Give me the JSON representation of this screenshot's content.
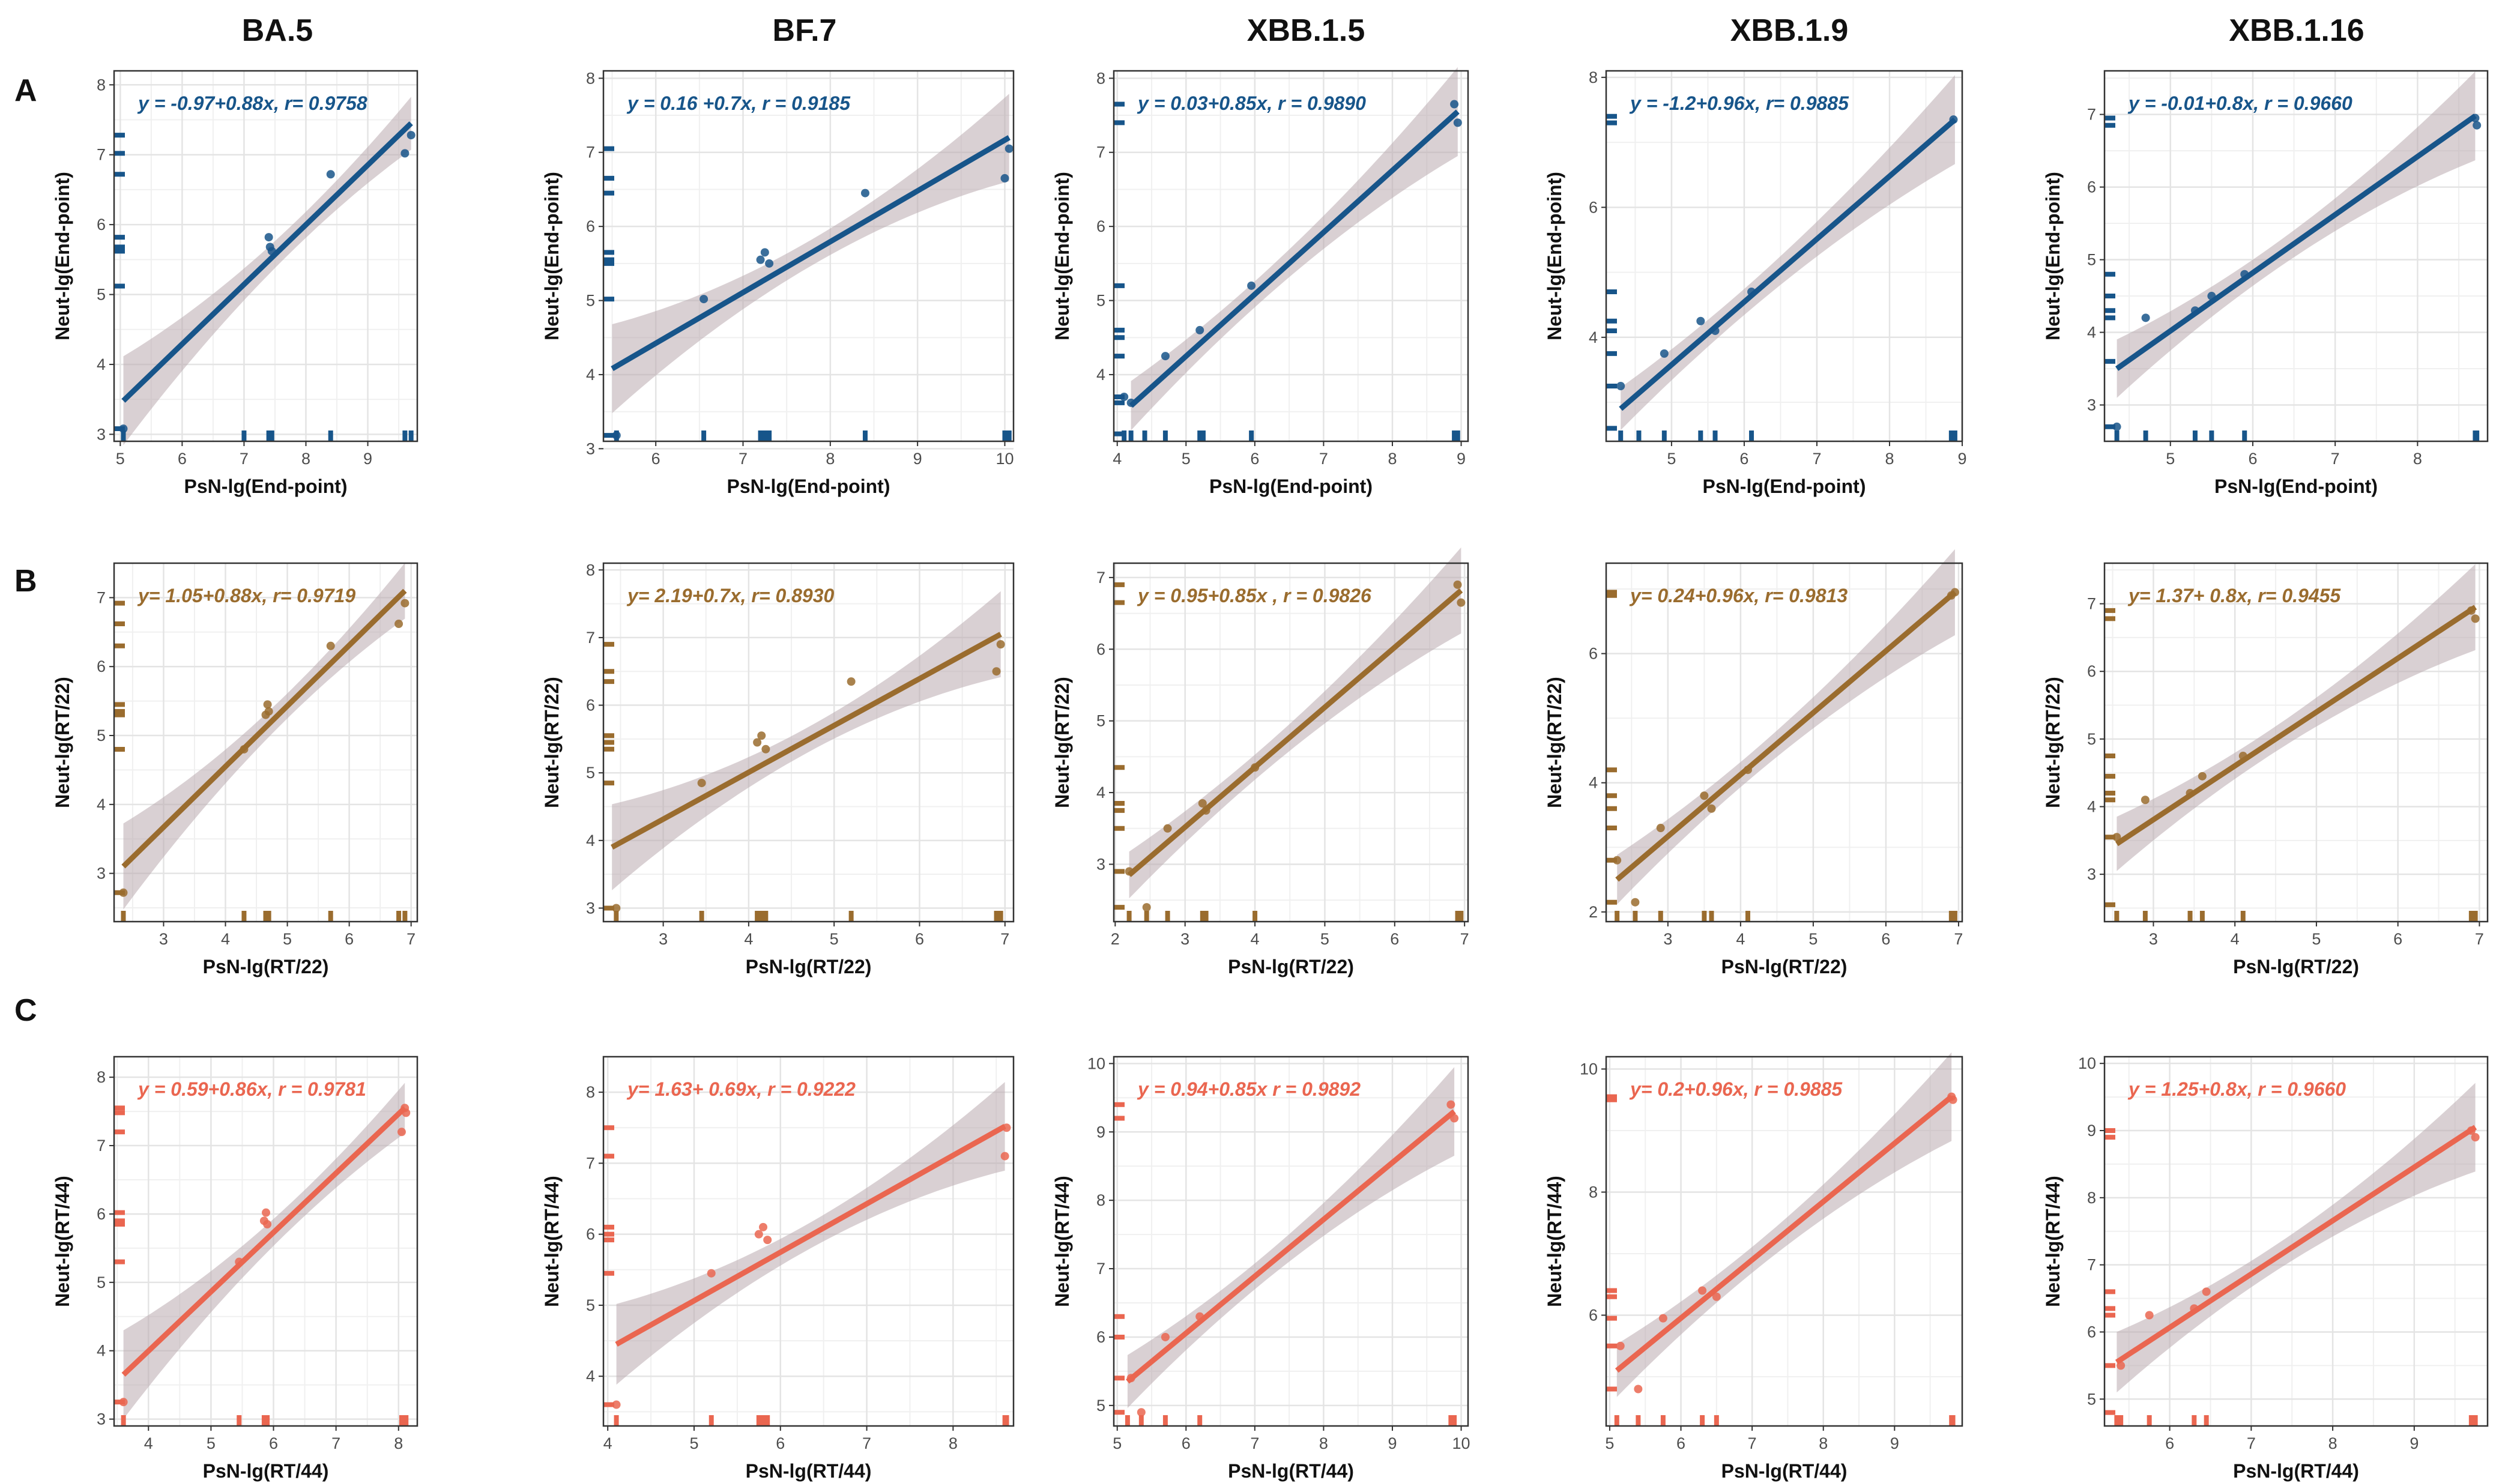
{
  "figure": {
    "col_titles": [
      "BA.5",
      "BF.7",
      "XBB.1.5",
      "XBB.1.9",
      "XBB.1.16"
    ],
    "row_labels": [
      "A",
      "B",
      "C"
    ],
    "row_colors": [
      "#17558a",
      "#9a6c2e",
      "#ea6650"
    ]
  },
  "chart_data": [
    {
      "type": "scatter",
      "row": 0,
      "col": 0,
      "variant": "BA.5",
      "title": "BA.5",
      "xlabel": "PsN-lg(End-point)",
      "ylabel": "Neut-lg(End-point)",
      "xlim": [
        4.9,
        9.8
      ],
      "ylim": [
        2.9,
        8.2
      ],
      "xticks": [
        5,
        6,
        7,
        8,
        9
      ],
      "yticks": [
        3,
        4,
        5,
        6,
        7,
        8
      ],
      "points": [
        [
          5.05,
          3.08
        ],
        [
          7.4,
          5.82
        ],
        [
          7.42,
          5.68
        ],
        [
          7.45,
          5.62
        ],
        [
          8.4,
          6.72
        ],
        [
          9.6,
          7.02
        ],
        [
          9.7,
          7.28
        ]
      ],
      "fit": [
        [
          5.05,
          3.48
        ],
        [
          9.7,
          7.45
        ]
      ],
      "equation": "y = -0.97+0.88x, r= 0.9758",
      "rug_x": [
        5.05,
        7.0,
        7.4,
        7.42,
        7.45,
        8.4,
        9.6,
        9.7
      ],
      "rug_y": [
        3.08,
        5.12,
        5.62,
        5.68,
        5.82,
        6.72,
        7.02,
        7.28
      ]
    },
    {
      "type": "scatter",
      "row": 0,
      "col": 1,
      "variant": "BF.7",
      "title": "BF.7",
      "xlabel": "PsN-lg(End-point)",
      "ylabel": "Neut-lg(End-point)",
      "xlim": [
        5.4,
        10.1
      ],
      "ylim": [
        3.1,
        8.1
      ],
      "xticks": [
        6,
        7,
        8,
        9,
        10
      ],
      "yticks": [
        3,
        4,
        5,
        6,
        7,
        8
      ],
      "points": [
        [
          5.55,
          3.18
        ],
        [
          6.55,
          5.02
        ],
        [
          7.2,
          5.55
        ],
        [
          7.25,
          5.65
        ],
        [
          7.3,
          5.5
        ],
        [
          8.4,
          6.45
        ],
        [
          10.0,
          6.65
        ],
        [
          10.05,
          7.05
        ]
      ],
      "fit": [
        [
          5.5,
          4.08
        ],
        [
          10.05,
          7.2
        ]
      ],
      "equation": "y = 0.16 +0.7x,  r = 0.9185",
      "rug_x": [
        5.55,
        6.55,
        7.2,
        7.25,
        7.3,
        8.4,
        10.0,
        10.05
      ],
      "rug_y": [
        3.18,
        5.02,
        5.5,
        5.55,
        5.65,
        6.45,
        6.65,
        7.05
      ]
    },
    {
      "type": "scatter",
      "row": 0,
      "col": 2,
      "variant": "XBB.1.5",
      "title": "XBB.1.5",
      "xlabel": "PsN-lg(End-point)",
      "ylabel": "Neut-lg(End-point)",
      "xlim": [
        3.95,
        9.1
      ],
      "ylim": [
        3.1,
        8.1
      ],
      "xticks": [
        4,
        5,
        6,
        7,
        8,
        9
      ],
      "yticks": [
        4,
        5,
        6,
        7,
        8
      ],
      "points": [
        [
          4.1,
          3.7
        ],
        [
          4.2,
          3.62
        ],
        [
          4.7,
          4.25
        ],
        [
          5.2,
          4.6
        ],
        [
          5.95,
          5.2
        ],
        [
          8.9,
          7.65
        ],
        [
          8.95,
          7.4
        ]
      ],
      "fit": [
        [
          4.2,
          3.58
        ],
        [
          8.95,
          7.55
        ]
      ],
      "equation": "y = 0.03+0.85x,  r = 0.9890",
      "rug_x": [
        4.1,
        4.2,
        4.4,
        4.7,
        5.2,
        5.25,
        5.95,
        8.9,
        8.95
      ],
      "rug_y": [
        3.2,
        3.62,
        3.7,
        4.25,
        4.5,
        4.6,
        5.2,
        7.4,
        7.65
      ]
    },
    {
      "type": "scatter",
      "row": 0,
      "col": 3,
      "variant": "XBB.1.9",
      "title": "XBB.1.9",
      "xlabel": "PsN-lg(End-point)",
      "ylabel": "Neut-lg(End-point)",
      "xlim": [
        4.1,
        9.0
      ],
      "ylim": [
        2.4,
        8.1
      ],
      "xticks": [
        5,
        6,
        7,
        8,
        9
      ],
      "yticks": [
        4,
        6,
        8
      ],
      "points": [
        [
          4.3,
          3.25
        ],
        [
          4.9,
          3.75
        ],
        [
          5.4,
          4.25
        ],
        [
          5.6,
          4.1
        ],
        [
          6.1,
          4.7
        ],
        [
          8.88,
          7.35
        ]
      ],
      "fit": [
        [
          4.3,
          2.9
        ],
        [
          8.9,
          7.35
        ]
      ],
      "equation": "y = -1.2+0.96x, r= 0.9885",
      "rug_x": [
        4.3,
        4.55,
        4.9,
        5.4,
        5.6,
        6.1,
        8.85,
        8.9
      ],
      "rug_y": [
        2.6,
        3.25,
        3.75,
        4.1,
        4.25,
        4.7,
        7.3,
        7.4
      ]
    },
    {
      "type": "scatter",
      "row": 0,
      "col": 4,
      "variant": "XBB.1.16",
      "title": "XBB.1.16",
      "xlabel": "PsN-lg(End-point)",
      "ylabel": "Neut-lg(End-point)",
      "xlim": [
        4.2,
        8.85
      ],
      "ylim": [
        2.5,
        7.6
      ],
      "xticks": [
        5,
        6,
        7,
        8
      ],
      "yticks": [
        3,
        4,
        5,
        6,
        7
      ],
      "points": [
        [
          4.35,
          2.7
        ],
        [
          4.7,
          4.2
        ],
        [
          5.3,
          4.3
        ],
        [
          5.5,
          4.5
        ],
        [
          5.9,
          4.8
        ],
        [
          8.7,
          6.95
        ],
        [
          8.72,
          6.85
        ]
      ],
      "fit": [
        [
          4.35,
          3.5
        ],
        [
          8.7,
          6.98
        ]
      ],
      "equation": "y = -0.01+0.8x,  r = 0.9660",
      "rug_x": [
        4.35,
        4.7,
        5.3,
        5.5,
        5.9,
        8.7,
        8.72
      ],
      "rug_y": [
        2.7,
        3.6,
        4.2,
        4.3,
        4.5,
        4.8,
        6.85,
        6.95
      ]
    },
    {
      "type": "scatter",
      "row": 1,
      "col": 0,
      "variant": "BA.5",
      "title": "BA.5",
      "xlabel": "PsN-lg(RT/22)",
      "ylabel": "Neut-lg(RT/22)",
      "xlim": [
        2.2,
        7.1
      ],
      "ylim": [
        2.3,
        7.5
      ],
      "xticks": [
        3,
        4,
        5,
        6,
        7
      ],
      "yticks": [
        3,
        4,
        5,
        6,
        7
      ],
      "points": [
        [
          2.35,
          2.72
        ],
        [
          4.3,
          4.8
        ],
        [
          4.65,
          5.3
        ],
        [
          4.68,
          5.45
        ],
        [
          4.7,
          5.35
        ],
        [
          5.7,
          6.3
        ],
        [
          6.8,
          6.62
        ],
        [
          6.9,
          6.92
        ]
      ],
      "fit": [
        [
          2.35,
          3.1
        ],
        [
          6.9,
          7.1
        ]
      ],
      "equation": "y= 1.05+0.88x, r= 0.9719",
      "rug_x": [
        2.35,
        4.3,
        4.65,
        4.68,
        4.7,
        5.7,
        6.8,
        6.9
      ],
      "rug_y": [
        2.72,
        4.8,
        5.3,
        5.35,
        5.45,
        6.3,
        6.62,
        6.92
      ]
    },
    {
      "type": "scatter",
      "row": 1,
      "col": 1,
      "variant": "BF.7",
      "title": "BF.7",
      "xlabel": "PsN-lg(RT/22)",
      "ylabel": "Neut-lg(RT/22)",
      "xlim": [
        2.3,
        7.1
      ],
      "ylim": [
        2.8,
        8.1
      ],
      "xticks": [
        3,
        4,
        5,
        6,
        7
      ],
      "yticks": [
        3,
        4,
        5,
        6,
        7,
        8
      ],
      "points": [
        [
          2.45,
          3.0
        ],
        [
          3.45,
          4.85
        ],
        [
          4.1,
          5.45
        ],
        [
          4.15,
          5.55
        ],
        [
          4.2,
          5.35
        ],
        [
          5.2,
          6.35
        ],
        [
          6.9,
          6.5
        ],
        [
          6.95,
          6.9
        ]
      ],
      "fit": [
        [
          2.4,
          3.9
        ],
        [
          6.95,
          7.05
        ]
      ],
      "equation": "y= 2.19+0.7x, r= 0.8930",
      "rug_x": [
        2.45,
        3.45,
        4.1,
        4.15,
        4.2,
        5.2,
        6.9,
        6.95
      ],
      "rug_y": [
        3.0,
        4.85,
        5.35,
        5.45,
        5.55,
        6.35,
        6.5,
        6.9
      ]
    },
    {
      "type": "scatter",
      "row": 1,
      "col": 2,
      "variant": "XBB.1.5",
      "title": "XBB.1.5",
      "xlabel": "PsN-lg(RT/22)",
      "ylabel": "Neut-lg(RT/22)",
      "xlim": [
        1.98,
        7.05
      ],
      "ylim": [
        2.2,
        7.2
      ],
      "xticks": [
        2,
        3,
        4,
        5,
        6,
        7
      ],
      "yticks": [
        3,
        4,
        5,
        6,
        7
      ],
      "points": [
        [
          2.2,
          2.9
        ],
        [
          2.45,
          2.4
        ],
        [
          2.75,
          3.5
        ],
        [
          3.25,
          3.85
        ],
        [
          3.3,
          3.75
        ],
        [
          4.0,
          4.35
        ],
        [
          6.9,
          6.9
        ],
        [
          6.95,
          6.65
        ]
      ],
      "fit": [
        [
          2.2,
          2.85
        ],
        [
          6.95,
          6.82
        ]
      ],
      "equation": "y = 0.95+0.85x ,  r = 0.9826",
      "rug_x": [
        2.2,
        2.45,
        2.75,
        3.25,
        3.3,
        4.0,
        6.9,
        6.95
      ],
      "rug_y": [
        2.4,
        2.9,
        3.5,
        3.75,
        3.85,
        4.35,
        6.65,
        6.9
      ]
    },
    {
      "type": "scatter",
      "row": 1,
      "col": 3,
      "variant": "XBB.1.9",
      "title": "XBB.1.9",
      "xlabel": "PsN-lg(RT/22)",
      "ylabel": "Neut-lg(RT/22)",
      "xlim": [
        2.15,
        7.05
      ],
      "ylim": [
        1.85,
        7.4
      ],
      "xticks": [
        3,
        4,
        5,
        6,
        7
      ],
      "yticks": [
        2,
        4,
        6
      ],
      "points": [
        [
          2.3,
          2.8
        ],
        [
          2.55,
          2.15
        ],
        [
          2.9,
          3.3
        ],
        [
          3.5,
          3.8
        ],
        [
          3.6,
          3.6
        ],
        [
          4.1,
          4.2
        ],
        [
          6.9,
          6.9
        ],
        [
          6.95,
          6.95
        ]
      ],
      "fit": [
        [
          2.3,
          2.5
        ],
        [
          6.95,
          6.95
        ]
      ],
      "equation": "y= 0.24+0.96x, r= 0.9813",
      "rug_x": [
        2.3,
        2.55,
        2.9,
        3.5,
        3.6,
        4.1,
        6.9,
        6.95
      ],
      "rug_y": [
        2.15,
        2.8,
        3.3,
        3.6,
        3.8,
        4.2,
        6.9,
        6.95
      ]
    },
    {
      "type": "scatter",
      "row": 1,
      "col": 4,
      "variant": "XBB.1.16",
      "title": "XBB.1.16",
      "xlabel": "PsN-lg(RT/22)",
      "ylabel": "Neut-lg(RT/22)",
      "xlim": [
        2.4,
        7.1
      ],
      "ylim": [
        2.3,
        7.6
      ],
      "xticks": [
        3,
        4,
        5,
        6,
        7
      ],
      "yticks": [
        3,
        4,
        5,
        6,
        7
      ],
      "points": [
        [
          2.55,
          3.55
        ],
        [
          2.9,
          4.1
        ],
        [
          3.45,
          4.2
        ],
        [
          3.6,
          4.45
        ],
        [
          4.1,
          4.75
        ],
        [
          6.9,
          6.9
        ],
        [
          6.95,
          6.78
        ]
      ],
      "fit": [
        [
          2.55,
          3.45
        ],
        [
          6.95,
          6.95
        ]
      ],
      "equation": "y= 1.37+ 0.8x, r= 0.9455",
      "rug_x": [
        2.55,
        2.9,
        3.45,
        3.6,
        4.1,
        6.9,
        6.95
      ],
      "rug_y": [
        2.55,
        3.55,
        4.1,
        4.2,
        4.45,
        4.75,
        6.78,
        6.9
      ]
    },
    {
      "type": "scatter",
      "row": 2,
      "col": 0,
      "variant": "BA.5",
      "title": "BA.5",
      "xlabel": "PsN-lg(RT/44)",
      "ylabel": "Neut-lg(RT/44)",
      "xlim": [
        3.45,
        8.3
      ],
      "ylim": [
        2.9,
        8.3
      ],
      "xticks": [
        4,
        5,
        6,
        7,
        8
      ],
      "yticks": [
        3,
        4,
        5,
        6,
        7,
        8
      ],
      "points": [
        [
          3.6,
          3.25
        ],
        [
          5.45,
          5.3
        ],
        [
          5.85,
          5.9
        ],
        [
          5.88,
          6.02
        ],
        [
          5.9,
          5.85
        ],
        [
          8.05,
          7.2
        ],
        [
          8.1,
          7.55
        ],
        [
          8.12,
          7.48
        ]
      ],
      "fit": [
        [
          3.6,
          3.65
        ],
        [
          8.1,
          7.55
        ]
      ],
      "equation": "y = 0.59+0.86x,  r = 0.9781",
      "rug_x": [
        3.6,
        5.45,
        5.85,
        5.88,
        5.9,
        8.05,
        8.1,
        8.12
      ],
      "rug_y": [
        3.25,
        5.3,
        5.85,
        5.9,
        6.02,
        7.2,
        7.48,
        7.55
      ]
    },
    {
      "type": "scatter",
      "row": 2,
      "col": 1,
      "variant": "BF.7",
      "title": "BF.7",
      "xlabel": "PsN-lg(RT/44)",
      "ylabel": "Neut-lg(RT/44)",
      "xlim": [
        3.95,
        8.7
      ],
      "ylim": [
        3.3,
        8.5
      ],
      "xticks": [
        4,
        5,
        6,
        7,
        8
      ],
      "yticks": [
        4,
        5,
        6,
        7,
        8
      ],
      "points": [
        [
          4.1,
          3.6
        ],
        [
          5.2,
          5.45
        ],
        [
          5.75,
          6.0
        ],
        [
          5.8,
          6.1
        ],
        [
          5.85,
          5.92
        ],
        [
          8.6,
          7.1
        ],
        [
          8.62,
          7.5
        ]
      ],
      "fit": [
        [
          4.1,
          4.45
        ],
        [
          8.6,
          7.52
        ]
      ],
      "equation": "y= 1.63+ 0.69x, r = 0.9222",
      "rug_x": [
        4.1,
        5.2,
        5.75,
        5.8,
        5.85,
        8.6,
        8.62
      ],
      "rug_y": [
        3.6,
        5.45,
        5.92,
        6.0,
        6.1,
        7.1,
        7.5
      ]
    },
    {
      "type": "scatter",
      "row": 2,
      "col": 2,
      "variant": "XBB.1.5",
      "title": "XBB.1.5",
      "xlabel": "PsN-lg(RT/44)",
      "ylabel": "Neut-lg(RT/44)",
      "xlim": [
        4.95,
        10.1
      ],
      "ylim": [
        4.7,
        10.1
      ],
      "xticks": [
        5,
        6,
        7,
        8,
        9,
        10
      ],
      "yticks": [
        5,
        6,
        7,
        8,
        9,
        10
      ],
      "points": [
        [
          5.2,
          5.4
        ],
        [
          5.35,
          4.9
        ],
        [
          5.7,
          6.0
        ],
        [
          6.2,
          6.3
        ],
        [
          9.85,
          9.4
        ],
        [
          9.9,
          9.2
        ]
      ],
      "fit": [
        [
          5.15,
          5.35
        ],
        [
          9.9,
          9.3
        ]
      ],
      "equation": "y = 0.94+0.85x  r = 0.9892",
      "rug_x": [
        5.15,
        5.35,
        5.7,
        6.2,
        9.85,
        9.9
      ],
      "rug_y": [
        4.9,
        5.4,
        6.0,
        6.3,
        9.2,
        9.4
      ]
    },
    {
      "type": "scatter",
      "row": 2,
      "col": 3,
      "variant": "XBB.1.9",
      "title": "XBB.1.9",
      "xlabel": "PsN-lg(RT/44)",
      "ylabel": "Neut-lg(RT/44)",
      "xlim": [
        4.95,
        9.95
      ],
      "ylim": [
        4.2,
        10.2
      ],
      "xticks": [
        5,
        6,
        7,
        8,
        9
      ],
      "yticks": [
        6,
        8,
        10
      ],
      "points": [
        [
          5.15,
          5.5
        ],
        [
          5.4,
          4.8
        ],
        [
          5.75,
          5.95
        ],
        [
          6.3,
          6.4
        ],
        [
          6.5,
          6.3
        ],
        [
          9.8,
          9.55
        ],
        [
          9.82,
          9.5
        ]
      ],
      "fit": [
        [
          5.1,
          5.1
        ],
        [
          9.8,
          9.55
        ]
      ],
      "equation": "y= 0.2+0.96x,  r = 0.9885",
      "rug_x": [
        5.1,
        5.4,
        5.75,
        6.3,
        6.5,
        9.8,
        9.82
      ],
      "rug_y": [
        4.8,
        5.5,
        5.95,
        6.3,
        6.4,
        9.5,
        9.55
      ]
    },
    {
      "type": "scatter",
      "row": 2,
      "col": 4,
      "variant": "XBB.1.16",
      "title": "XBB.1.16",
      "xlabel": "PsN-lg(RT/44)",
      "ylabel": "Neut-lg(RT/44)",
      "xlim": [
        5.2,
        9.9
      ],
      "ylim": [
        4.6,
        10.1
      ],
      "xticks": [
        6,
        7,
        8,
        9
      ],
      "yticks": [
        5,
        6,
        7,
        8,
        9,
        10
      ],
      "points": [
        [
          5.4,
          5.5
        ],
        [
          5.75,
          6.25
        ],
        [
          6.3,
          6.35
        ],
        [
          6.45,
          6.6
        ],
        [
          9.7,
          9.0
        ],
        [
          9.75,
          8.9
        ]
      ],
      "fit": [
        [
          5.35,
          5.55
        ],
        [
          9.75,
          9.05
        ]
      ],
      "equation": "y = 1.25+0.8x,  r = 0.9660",
      "rug_x": [
        5.35,
        5.4,
        5.75,
        6.3,
        6.45,
        9.7,
        9.75
      ],
      "rug_y": [
        4.8,
        5.5,
        6.25,
        6.35,
        6.6,
        8.9,
        9.0
      ]
    }
  ]
}
